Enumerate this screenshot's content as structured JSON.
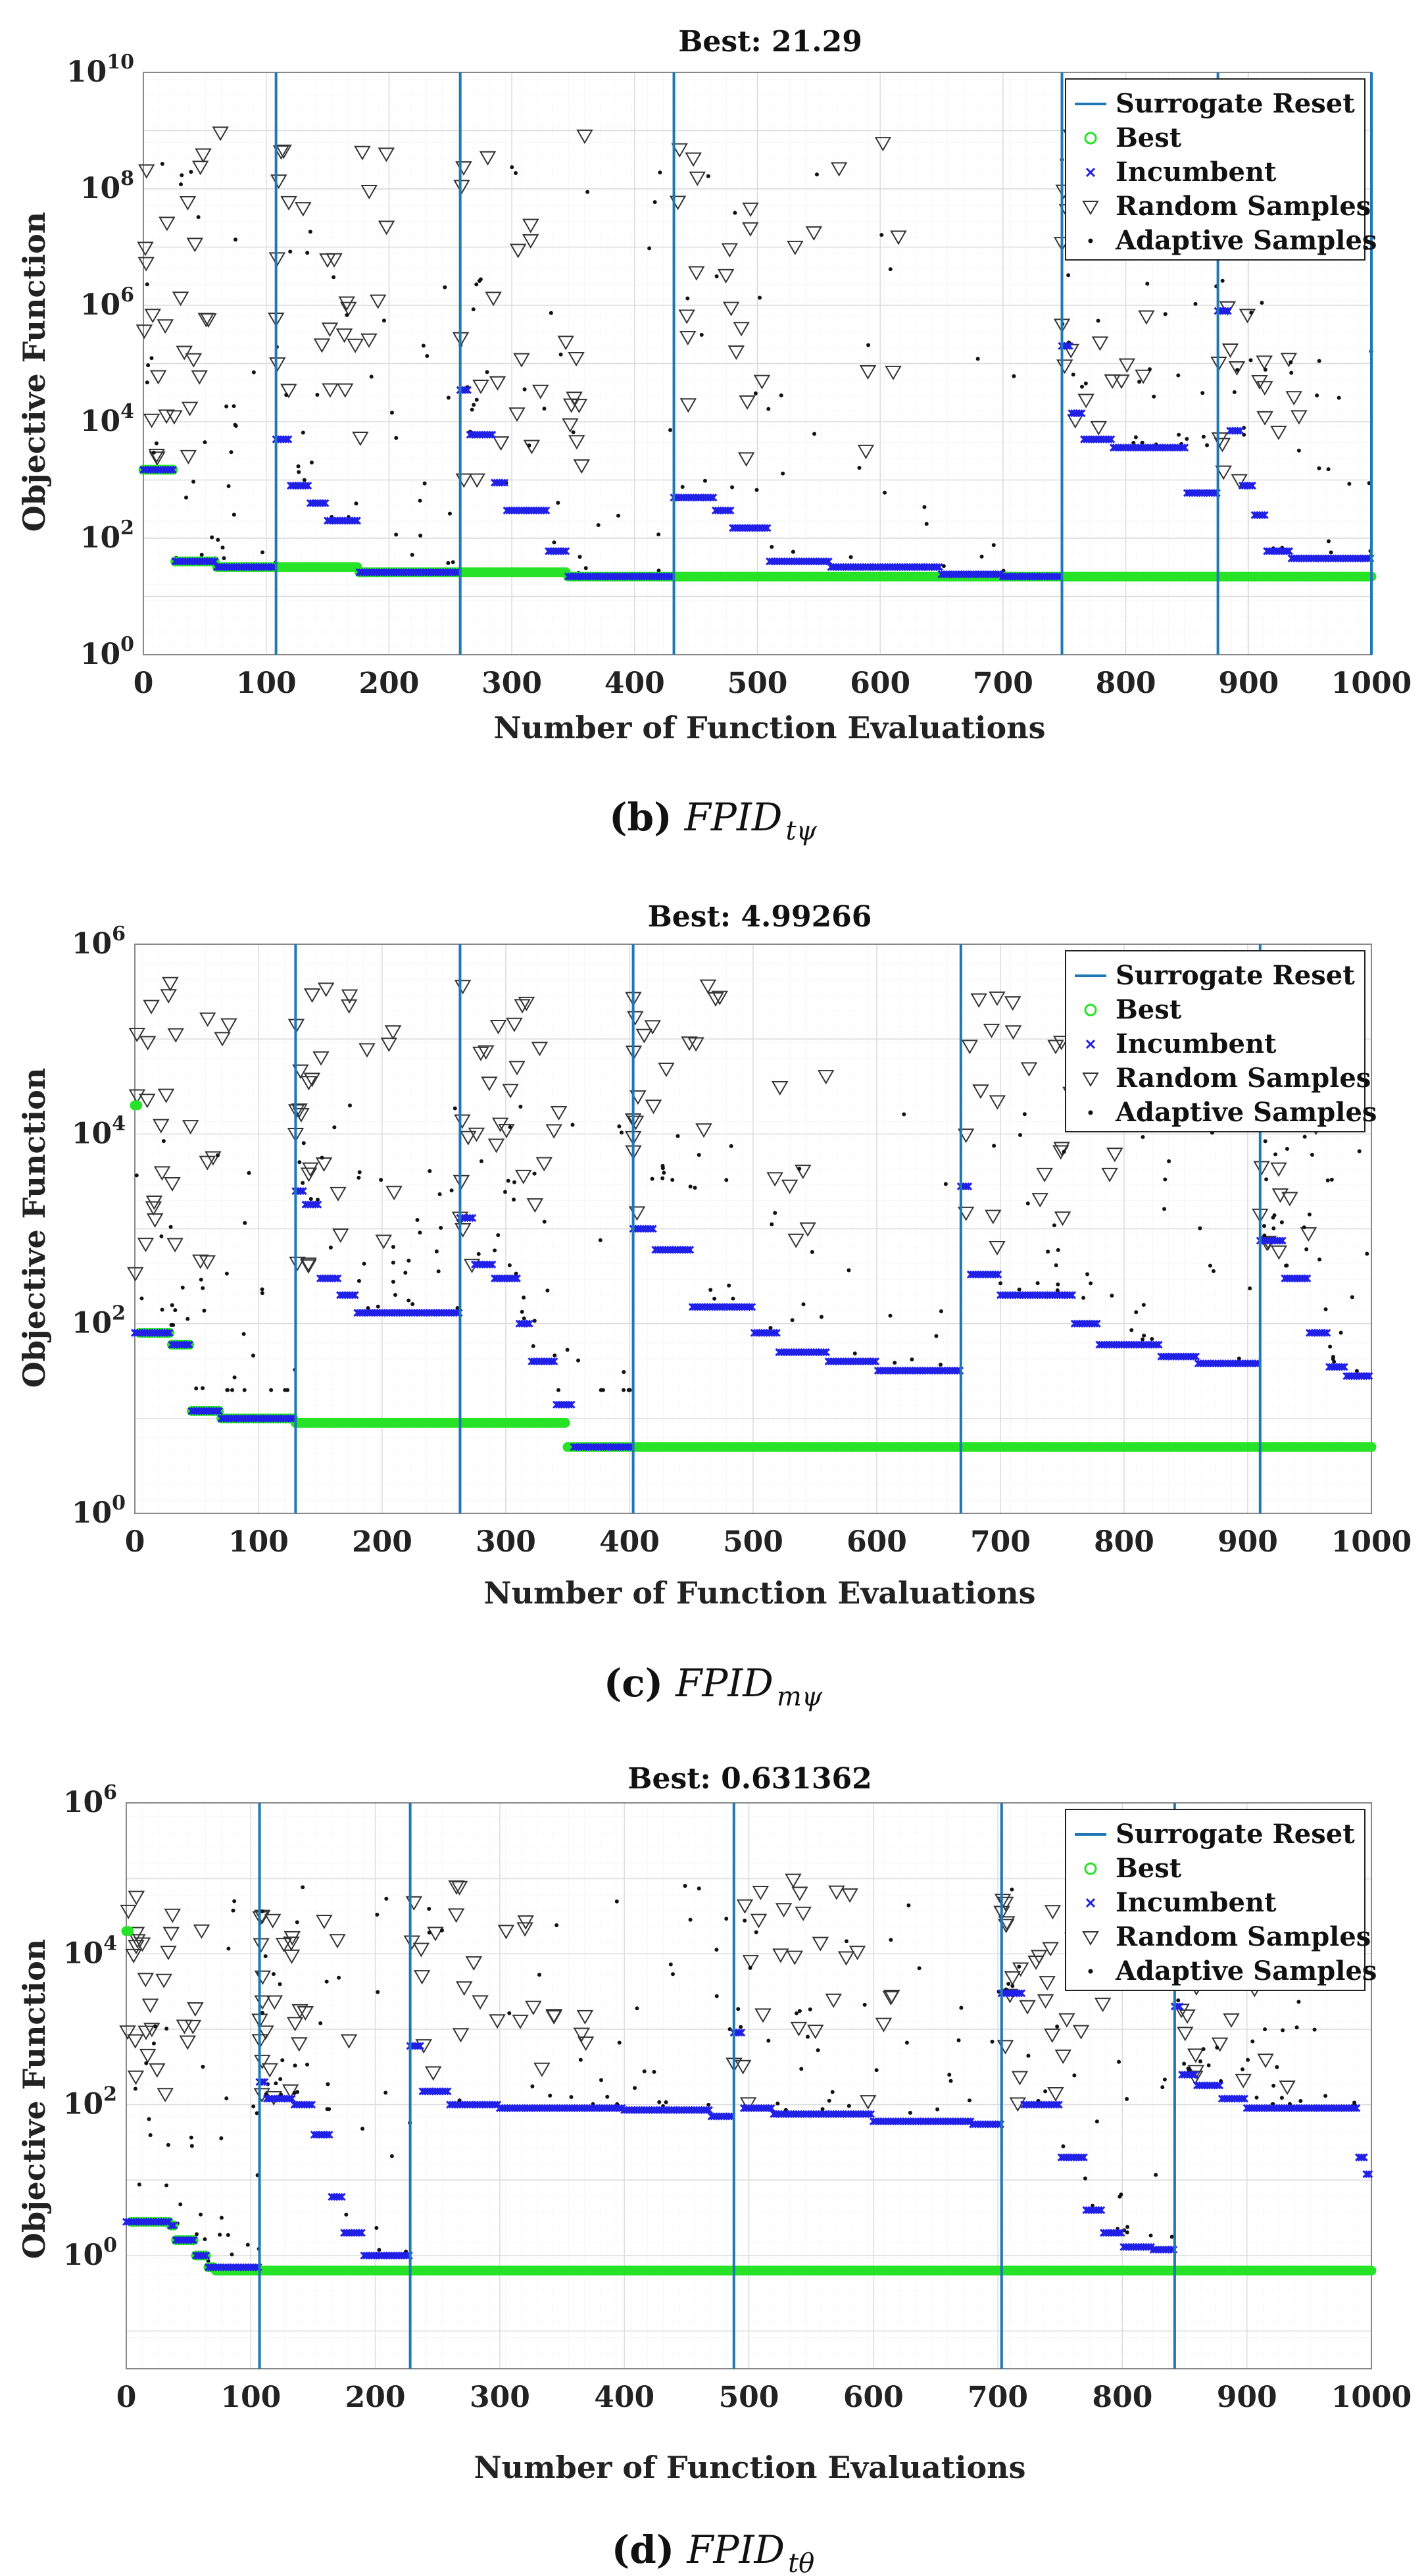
{
  "chart_data": [
    {
      "type": "scatter",
      "caption": {
        "letter": "b",
        "label": "(b)",
        "symbol": "FPID",
        "subscript": "tψ"
      },
      "title": "Best: 21.29",
      "xlabel": "Number of Function Evaluations",
      "ylabel": "Objective Function",
      "xlim": [
        0,
        1000
      ],
      "ylog": true,
      "ylim_exp": [
        0,
        10
      ],
      "xticks": [
        "0",
        "100",
        "200",
        "300",
        "400",
        "500",
        "600",
        "700",
        "800",
        "900",
        "1000"
      ],
      "yticks": [
        {
          "base": "10",
          "exp": "0"
        },
        {
          "base": "10",
          "exp": "2"
        },
        {
          "base": "10",
          "exp": "4"
        },
        {
          "base": "10",
          "exp": "6"
        },
        {
          "base": "10",
          "exp": "8"
        },
        {
          "base": "10",
          "exp": "10"
        }
      ],
      "legend": [
        "Surrogate Reset",
        "Best",
        "Incumbent",
        "Random Samples",
        "Adaptive Samples"
      ],
      "resets": [
        108,
        258,
        432,
        748,
        875,
        1000
      ],
      "best_steps": [
        [
          0,
          1500
        ],
        [
          25,
          40
        ],
        [
          60,
          32
        ],
        [
          175,
          26
        ],
        [
          345,
          22
        ],
        [
          1000,
          22
        ]
      ],
      "incumbent_segments": [
        {
          "start": 0,
          "end": 108,
          "steps": [
            [
              0,
              1500
            ],
            [
              25,
              40
            ],
            [
              60,
              32
            ]
          ]
        },
        {
          "start": 108,
          "end": 258,
          "steps": [
            [
              108,
              5000
            ],
            [
              120,
              800
            ],
            [
              135,
              400
            ],
            [
              150,
              200
            ],
            [
              175,
              26
            ]
          ]
        },
        {
          "start": 258,
          "end": 432,
          "steps": [
            [
              258,
              35000
            ],
            [
              265,
              6000
            ],
            [
              285,
              900
            ],
            [
              295,
              300
            ],
            [
              330,
              60
            ],
            [
              345,
              22
            ]
          ]
        },
        {
          "start": 432,
          "end": 748,
          "steps": [
            [
              432,
              500
            ],
            [
              465,
              300
            ],
            [
              480,
              150
            ],
            [
              510,
              40
            ],
            [
              560,
              32
            ],
            [
              650,
              24
            ],
            [
              700,
              22
            ]
          ]
        },
        {
          "start": 748,
          "end": 875,
          "steps": [
            [
              748,
              200000
            ],
            [
              755,
              14000
            ],
            [
              765,
              5000
            ],
            [
              790,
              3600
            ],
            [
              850,
              600
            ]
          ]
        },
        {
          "start": 875,
          "end": 1000,
          "steps": [
            [
              875,
              800000
            ],
            [
              885,
              7000
            ],
            [
              895,
              800
            ],
            [
              905,
              250
            ],
            [
              915,
              60
            ],
            [
              935,
              45
            ]
          ]
        }
      ],
      "random_band_exp": [
        3,
        9
      ],
      "adaptive_band_exp": [
        1.4,
        8.5
      ]
    },
    {
      "type": "scatter",
      "caption": {
        "letter": "c",
        "label": "(c)",
        "symbol": "FPID",
        "subscript": "mψ"
      },
      "title": "Best: 4.99266",
      "xlabel": "Number of Function Evaluations",
      "ylabel": "Objective Function",
      "xlim": [
        0,
        1000
      ],
      "ylog": true,
      "ylim_exp": [
        0,
        6
      ],
      "xticks": [
        "0",
        "100",
        "200",
        "300",
        "400",
        "500",
        "600",
        "700",
        "800",
        "900",
        "1000"
      ],
      "yticks": [
        {
          "base": "10",
          "exp": "0"
        },
        {
          "base": "10",
          "exp": "2"
        },
        {
          "base": "10",
          "exp": "4"
        },
        {
          "base": "10",
          "exp": "6"
        }
      ],
      "legend": [
        "Surrogate Reset",
        "Best",
        "Incumbent",
        "Random Samples",
        "Adaptive Samples"
      ],
      "resets": [
        130,
        263,
        403,
        668,
        910
      ],
      "best_steps": [
        [
          0,
          20000
        ],
        [
          3,
          80
        ],
        [
          30,
          60
        ],
        [
          45,
          12
        ],
        [
          70,
          10
        ],
        [
          130,
          9
        ],
        [
          350,
          5
        ],
        [
          1000,
          5
        ]
      ],
      "incumbent_segments": [
        {
          "start": 0,
          "end": 130,
          "steps": [
            [
              0,
              80
            ],
            [
              30,
              60
            ],
            [
              45,
              12
            ],
            [
              70,
              10
            ]
          ]
        },
        {
          "start": 130,
          "end": 263,
          "steps": [
            [
              130,
              2500
            ],
            [
              138,
              1800
            ],
            [
              150,
              300
            ],
            [
              165,
              200
            ],
            [
              180,
              130
            ]
          ]
        },
        {
          "start": 263,
          "end": 403,
          "steps": [
            [
              263,
              1300
            ],
            [
              275,
              420
            ],
            [
              290,
              300
            ],
            [
              310,
              100
            ],
            [
              320,
              40
            ],
            [
              340,
              14
            ],
            [
              355,
              5
            ]
          ]
        },
        {
          "start": 403,
          "end": 668,
          "steps": [
            [
              403,
              1000
            ],
            [
              420,
              600
            ],
            [
              450,
              150
            ],
            [
              500,
              80
            ],
            [
              520,
              50
            ],
            [
              560,
              40
            ],
            [
              600,
              32
            ]
          ]
        },
        {
          "start": 668,
          "end": 910,
          "steps": [
            [
              668,
              2800
            ],
            [
              675,
              330
            ],
            [
              700,
              200
            ],
            [
              760,
              100
            ],
            [
              780,
              60
            ],
            [
              830,
              45
            ],
            [
              860,
              38
            ]
          ]
        },
        {
          "start": 910,
          "end": 1000,
          "steps": [
            [
              910,
              750
            ],
            [
              930,
              300
            ],
            [
              950,
              80
            ],
            [
              965,
              35
            ],
            [
              980,
              28
            ]
          ]
        }
      ],
      "random_band_exp": [
        2.5,
        5.6
      ],
      "adaptive_band_exp": [
        1.3,
        4.3
      ]
    },
    {
      "type": "scatter",
      "caption": {
        "letter": "d",
        "label": "(d)",
        "symbol": "FPID",
        "subscript": "tθ"
      },
      "title": "Best: 0.631362",
      "xlabel": "Number of Function Evaluations",
      "ylabel": "Objective Function",
      "xlim": [
        0,
        1000
      ],
      "ylog": true,
      "ylim_exp": [
        -1.5,
        6
      ],
      "xticks": [
        "0",
        "100",
        "200",
        "300",
        "400",
        "500",
        "600",
        "700",
        "800",
        "900",
        "1000"
      ],
      "yticks": [
        {
          "base": "10",
          "exp": "0"
        },
        {
          "base": "10",
          "exp": "2"
        },
        {
          "base": "10",
          "exp": "4"
        },
        {
          "base": "10",
          "exp": "6"
        }
      ],
      "legend": [
        "Surrogate Reset",
        "Best",
        "Incumbent",
        "Random Samples",
        "Adaptive Samples"
      ],
      "resets": [
        107,
        228,
        488,
        703,
        842
      ],
      "best_steps": [
        [
          0,
          20000
        ],
        [
          3,
          2.8
        ],
        [
          35,
          2.5
        ],
        [
          40,
          1.6
        ],
        [
          55,
          1.0
        ],
        [
          65,
          0.7
        ],
        [
          72,
          0.631
        ],
        [
          1000,
          0.631
        ]
      ],
      "incumbent_segments": [
        {
          "start": 0,
          "end": 107,
          "steps": [
            [
              0,
              2.8
            ],
            [
              35,
              2.5
            ],
            [
              40,
              1.6
            ],
            [
              55,
              1.0
            ],
            [
              65,
              0.7
            ]
          ]
        },
        {
          "start": 107,
          "end": 228,
          "steps": [
            [
              107,
              200
            ],
            [
              112,
              120
            ],
            [
              135,
              100
            ],
            [
              150,
              40
            ],
            [
              165,
              6
            ],
            [
              175,
              2
            ],
            [
              190,
              1
            ]
          ]
        },
        {
          "start": 228,
          "end": 488,
          "steps": [
            [
              228,
              600
            ],
            [
              238,
              150
            ],
            [
              260,
              100
            ],
            [
              300,
              90
            ],
            [
              400,
              85
            ],
            [
              470,
              70
            ]
          ]
        },
        {
          "start": 488,
          "end": 703,
          "steps": [
            [
              488,
              900
            ],
            [
              495,
              90
            ],
            [
              520,
              75
            ],
            [
              600,
              60
            ],
            [
              680,
              55
            ]
          ]
        },
        {
          "start": 703,
          "end": 842,
          "steps": [
            [
              703,
              3000
            ],
            [
              720,
              100
            ],
            [
              750,
              20
            ],
            [
              770,
              4
            ],
            [
              785,
              2
            ],
            [
              800,
              1.3
            ],
            [
              825,
              1.2
            ]
          ]
        },
        {
          "start": 842,
          "end": 1000,
          "steps": [
            [
              842,
              2000
            ],
            [
              848,
              250
            ],
            [
              860,
              180
            ],
            [
              880,
              120
            ],
            [
              900,
              90
            ],
            [
              990,
              20
            ],
            [
              995,
              12
            ]
          ]
        }
      ],
      "random_band_exp": [
        2.0,
        5.0
      ],
      "adaptive_band_exp": [
        -0.5,
        4.9
      ]
    }
  ]
}
